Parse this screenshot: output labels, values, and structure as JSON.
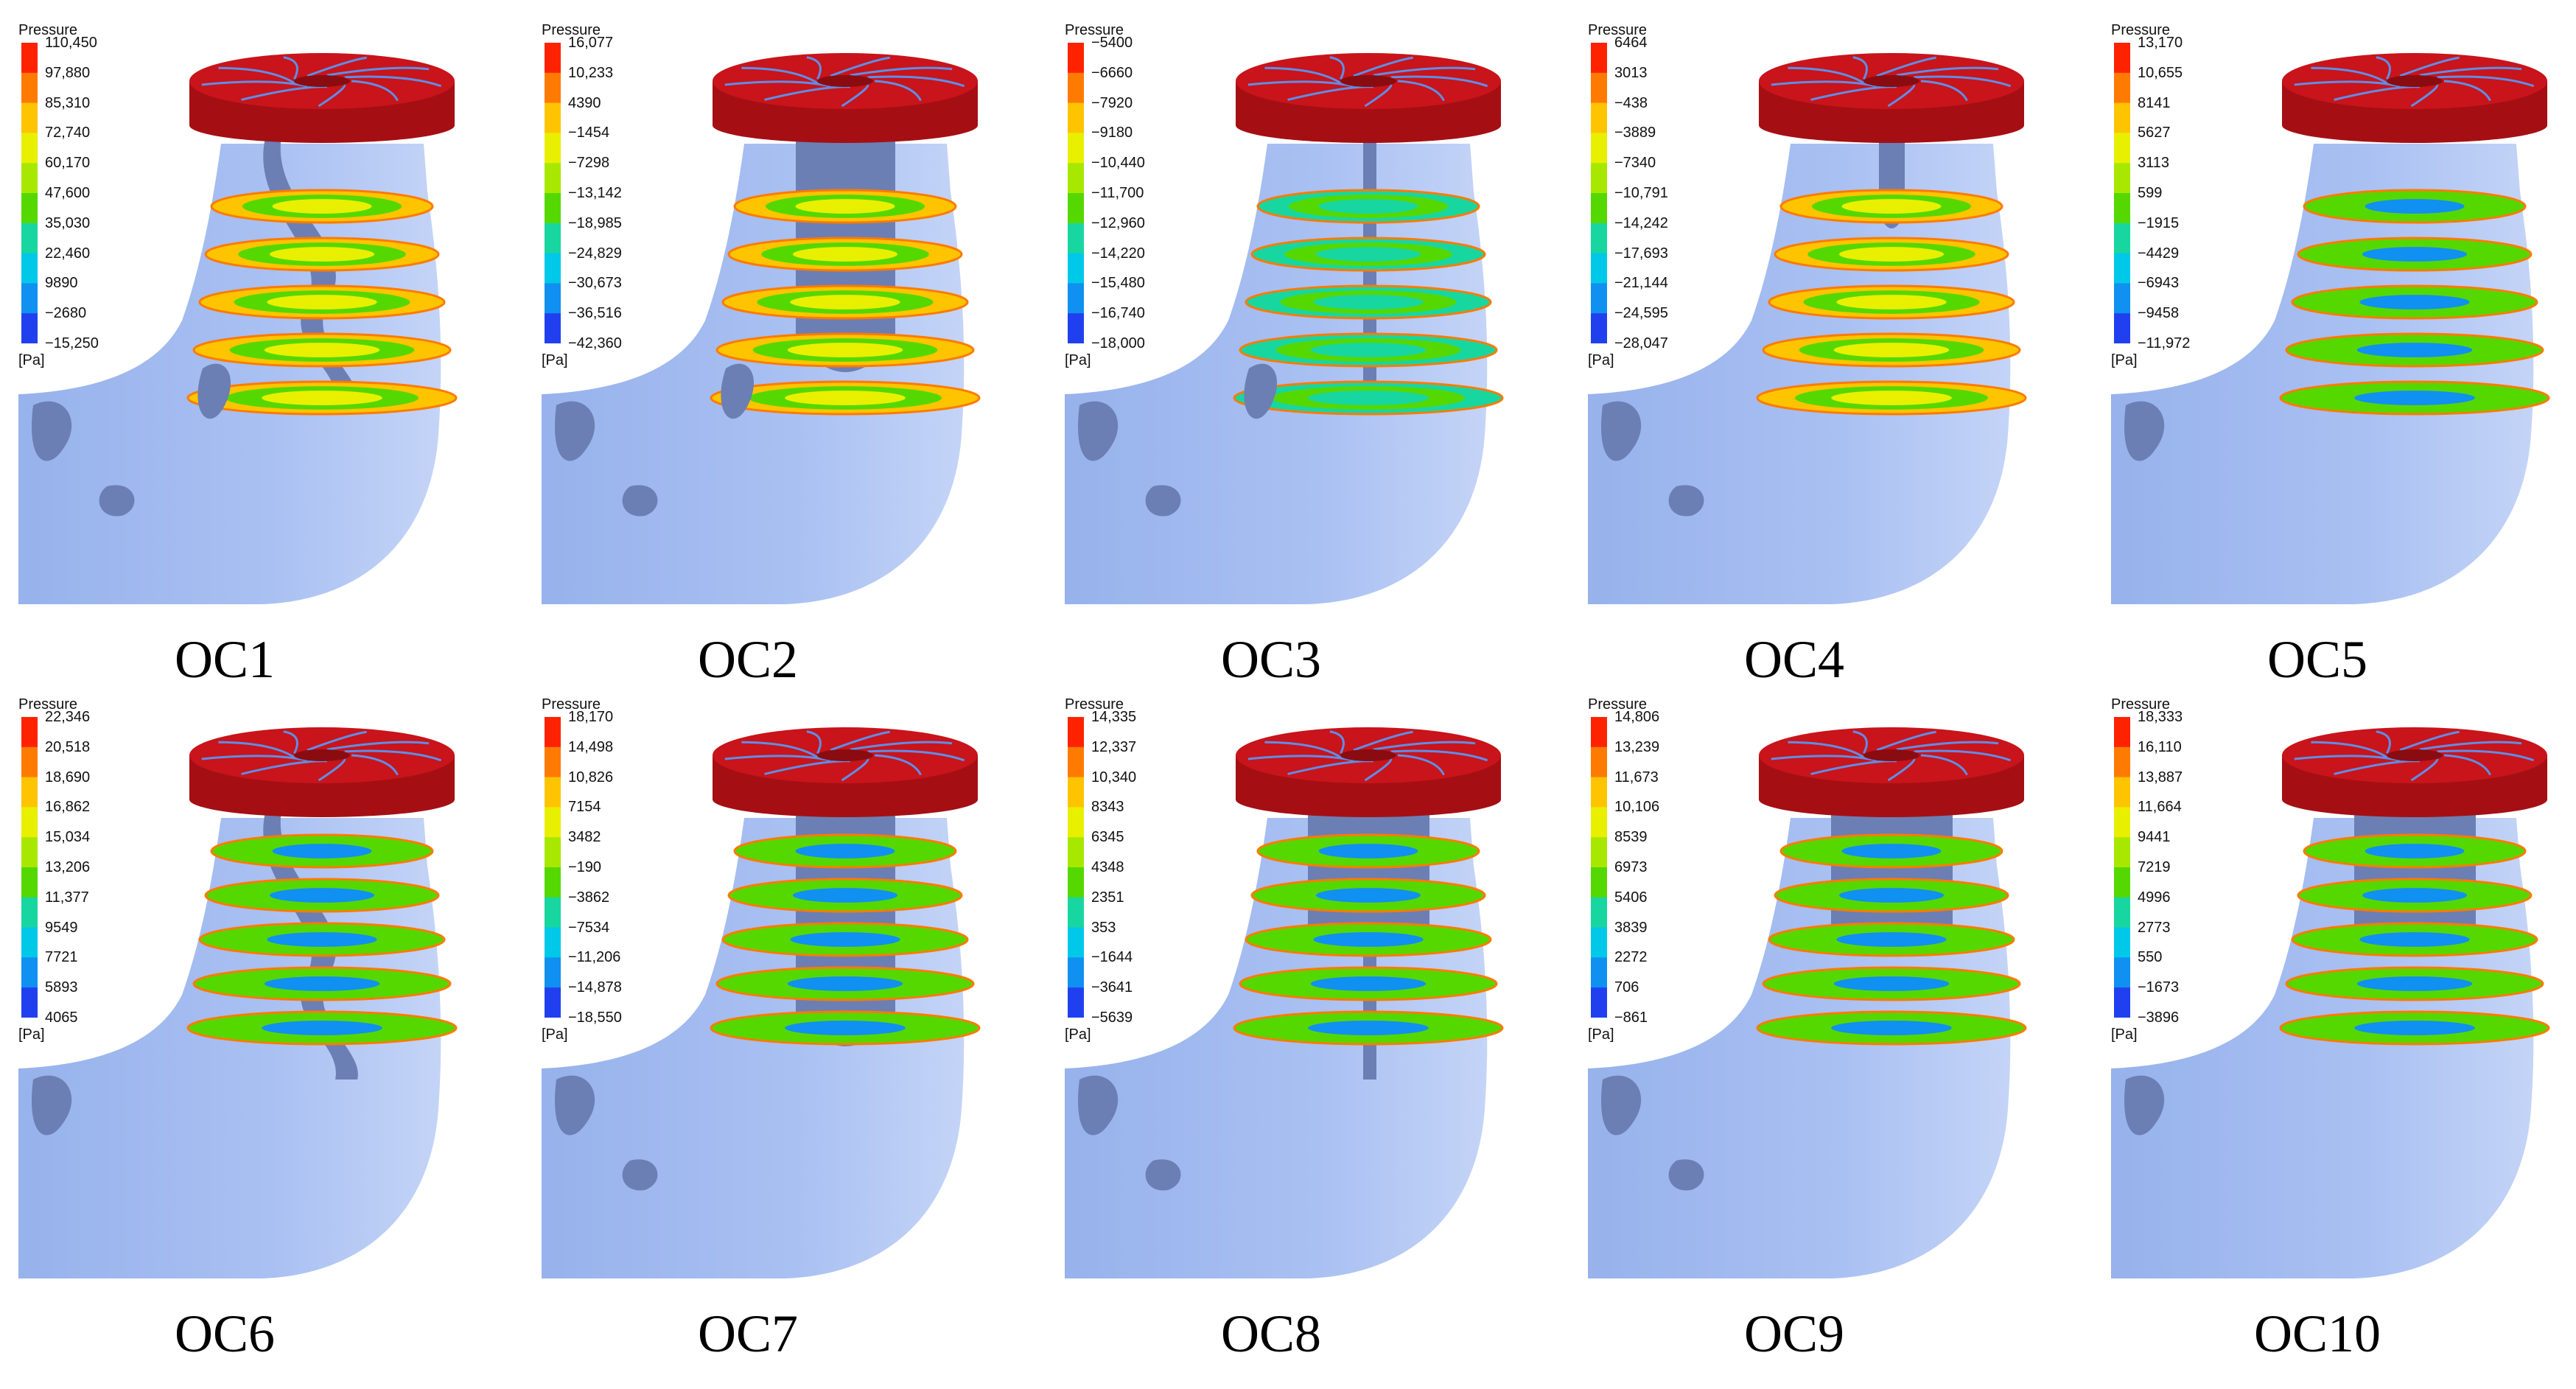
{
  "legend_title": "Pressure",
  "legend_unit": "[Pa]",
  "colormap": [
    "#ff2200",
    "#ff7a00",
    "#ffc400",
    "#e8f000",
    "#a8e800",
    "#55d800",
    "#18d6a0",
    "#00c8e8",
    "#1090f0",
    "#2040f0"
  ],
  "fluid_color": "#a9c0f2",
  "vortex_color": "#6b7fb4",
  "impeller_color": "#c8141a",
  "panels": [
    {
      "label": "OC1",
      "ticks": [
        "110,450",
        "97,880",
        "85,310",
        "72,740",
        "60,170",
        "47,600",
        "35,030",
        "22,460",
        "9890",
        "−2680",
        "−15,250"
      ]
    },
    {
      "label": "OC2",
      "ticks": [
        "16,077",
        "10,233",
        "4390",
        "−1454",
        "−7298",
        "−13,142",
        "−18,985",
        "−24,829",
        "−30,673",
        "−36,516",
        "−42,360"
      ]
    },
    {
      "label": "OC3",
      "ticks": [
        "−5400",
        "−6660",
        "−7920",
        "−9180",
        "−10,440",
        "−11,700",
        "−12,960",
        "−14,220",
        "−15,480",
        "−16,740",
        "−18,000"
      ]
    },
    {
      "label": "OC4",
      "ticks": [
        "6464",
        "3013",
        "−438",
        "−3889",
        "−7340",
        "−10,791",
        "−14,242",
        "−17,693",
        "−21,144",
        "−24,595",
        "−28,047"
      ]
    },
    {
      "label": "OC5",
      "ticks": [
        "13,170",
        "10,655",
        "8141",
        "5627",
        "3113",
        "599",
        "−1915",
        "−4429",
        "−6943",
        "−9458",
        "−11,972"
      ]
    },
    {
      "label": "OC6",
      "ticks": [
        "22,346",
        "20,518",
        "18,690",
        "16,862",
        "15,034",
        "13,206",
        "11,377",
        "9549",
        "7721",
        "5893",
        "4065"
      ]
    },
    {
      "label": "OC7",
      "ticks": [
        "18,170",
        "14,498",
        "10,826",
        "7154",
        "3482",
        "−190",
        "−3862",
        "−7534",
        "−11,206",
        "−14,878",
        "−18,550"
      ]
    },
    {
      "label": "OC8",
      "ticks": [
        "14,335",
        "12,337",
        "10,340",
        "8343",
        "6345",
        "4348",
        "2351",
        "353",
        "−1644",
        "−3641",
        "−5639"
      ]
    },
    {
      "label": "OC9",
      "ticks": [
        "14,806",
        "13,239",
        "11,673",
        "10,106",
        "8539",
        "6973",
        "5406",
        "3839",
        "2272",
        "706",
        "−861"
      ]
    },
    {
      "label": "OC10",
      "ticks": [
        "18,333",
        "16,110",
        "13,887",
        "11,664",
        "9441",
        "7219",
        "4996",
        "2773",
        "550",
        "−1673",
        "−3896"
      ]
    }
  ]
}
